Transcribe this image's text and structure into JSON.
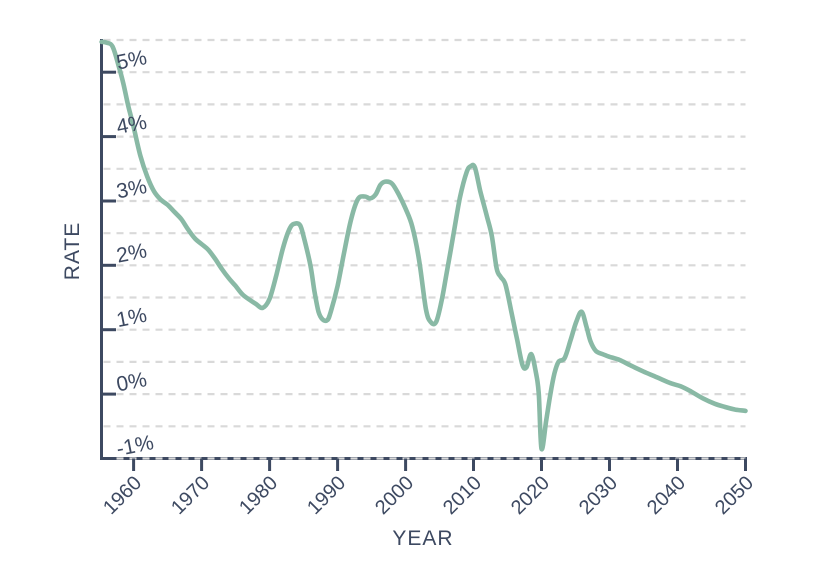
{
  "figure": {
    "background": "#ffffff",
    "colors": {
      "line": "#89b9a5",
      "grid": "#d9d9d9",
      "axis": "#3d4961",
      "text": "#3d4961"
    },
    "x_axis": {
      "title": "YEAR",
      "tick_years": [
        1960,
        1970,
        1980,
        1990,
        2000,
        2010,
        2020,
        2030,
        2040,
        2050
      ],
      "tick_labels": [
        "1960",
        "1970",
        "1980",
        "1990",
        "2000",
        "2010",
        "2020",
        "2030",
        "2040",
        "2050"
      ]
    },
    "y_axis": {
      "title": "RATE",
      "tick_values": [
        5,
        4,
        3,
        2,
        1,
        0,
        -1
      ],
      "tick_labels": [
        "5%",
        "4%",
        "3%",
        "2%",
        "1%",
        "0%",
        "-1%"
      ]
    }
  },
  "chart_data": {
    "type": "line",
    "title": "",
    "xlabel": "YEAR",
    "ylabel": "RATE",
    "x_range": [
      1955.28,
      2050
    ],
    "y_range": [
      -1.0,
      5.5
    ],
    "grid": "horizontal dashed lines every 0.5%, from -1% to 5.5%",
    "legend": "none",
    "units": "percent",
    "series": [
      {
        "name": "rate",
        "color": "#89b9a5",
        "points": [
          [
            1955.3,
            5.47
          ],
          [
            1956.0,
            5.46
          ],
          [
            1956.9,
            5.4
          ],
          [
            1957.8,
            5.1
          ],
          [
            1958.5,
            4.82
          ],
          [
            1959.2,
            4.48
          ],
          [
            1960,
            4.15
          ],
          [
            1961,
            3.7
          ],
          [
            1962,
            3.38
          ],
          [
            1963,
            3.15
          ],
          [
            1964,
            3.02
          ],
          [
            1965,
            2.94
          ],
          [
            1966,
            2.83
          ],
          [
            1967,
            2.72
          ],
          [
            1968,
            2.56
          ],
          [
            1969,
            2.42
          ],
          [
            1970,
            2.33
          ],
          [
            1971,
            2.24
          ],
          [
            1972,
            2.1
          ],
          [
            1973,
            1.94
          ],
          [
            1974,
            1.8
          ],
          [
            1975,
            1.68
          ],
          [
            1976,
            1.55
          ],
          [
            1977,
            1.47
          ],
          [
            1978,
            1.4
          ],
          [
            1979,
            1.34
          ],
          [
            1980,
            1.48
          ],
          [
            1981,
            1.85
          ],
          [
            1982,
            2.28
          ],
          [
            1983,
            2.58
          ],
          [
            1983.8,
            2.65
          ],
          [
            1984.5,
            2.62
          ],
          [
            1985,
            2.45
          ],
          [
            1986,
            2.0
          ],
          [
            1986.6,
            1.6
          ],
          [
            1987.2,
            1.28
          ],
          [
            1987.8,
            1.16
          ],
          [
            1988.5,
            1.15
          ],
          [
            1989,
            1.28
          ],
          [
            1990,
            1.68
          ],
          [
            1991,
            2.22
          ],
          [
            1992,
            2.72
          ],
          [
            1993,
            3.03
          ],
          [
            1994,
            3.07
          ],
          [
            1994.8,
            3.04
          ],
          [
            1995.6,
            3.1
          ],
          [
            1996.3,
            3.25
          ],
          [
            1997,
            3.3
          ],
          [
            1998,
            3.27
          ],
          [
            1999,
            3.1
          ],
          [
            2000,
            2.88
          ],
          [
            2001,
            2.6
          ],
          [
            2002,
            2.08
          ],
          [
            2003,
            1.32
          ],
          [
            2003.7,
            1.12
          ],
          [
            2004.5,
            1.12
          ],
          [
            2005.3,
            1.45
          ],
          [
            2006,
            1.85
          ],
          [
            2007,
            2.45
          ],
          [
            2008,
            3.05
          ],
          [
            2009,
            3.45
          ],
          [
            2009.6,
            3.54
          ],
          [
            2010.2,
            3.52
          ],
          [
            2011,
            3.15
          ],
          [
            2012,
            2.75
          ],
          [
            2012.7,
            2.45
          ],
          [
            2013.4,
            1.95
          ],
          [
            2014,
            1.82
          ],
          [
            2014.7,
            1.7
          ],
          [
            2015.6,
            1.26
          ],
          [
            2016.4,
            0.85
          ],
          [
            2017.2,
            0.45
          ],
          [
            2017.8,
            0.42
          ],
          [
            2018.5,
            0.62
          ],
          [
            2019.2,
            0.32
          ],
          [
            2019.6,
            0.0
          ],
          [
            2020.0,
            -0.85
          ],
          [
            2020.7,
            -0.4
          ],
          [
            2021.3,
            0.0
          ],
          [
            2021.9,
            0.32
          ],
          [
            2022.5,
            0.5
          ],
          [
            2023.4,
            0.56
          ],
          [
            2024.3,
            0.85
          ],
          [
            2025.1,
            1.12
          ],
          [
            2025.9,
            1.28
          ],
          [
            2026.6,
            1.05
          ],
          [
            2027.2,
            0.82
          ],
          [
            2028,
            0.67
          ],
          [
            2029,
            0.62
          ],
          [
            2030,
            0.58
          ],
          [
            2031.5,
            0.53
          ],
          [
            2033,
            0.45
          ],
          [
            2035,
            0.35
          ],
          [
            2037,
            0.26
          ],
          [
            2039,
            0.17
          ],
          [
            2040.5,
            0.12
          ],
          [
            2042,
            0.04
          ],
          [
            2043.8,
            -0.07
          ],
          [
            2045.5,
            -0.15
          ],
          [
            2047,
            -0.2
          ],
          [
            2048.5,
            -0.24
          ],
          [
            2050,
            -0.26
          ]
        ]
      }
    ]
  }
}
